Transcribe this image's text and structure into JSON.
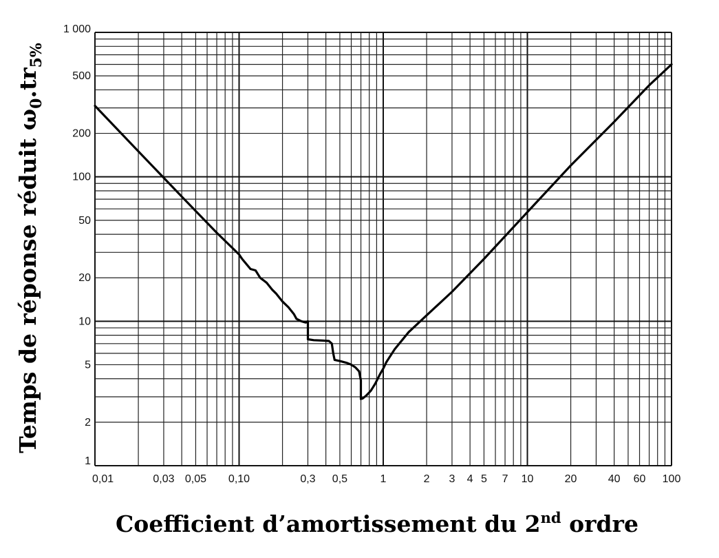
{
  "chart_data": {
    "type": "line",
    "xlabel": "Coefficient d’amortissement du 2",
    "xlabel_sup": "nd",
    "xlabel_tail": " ordre",
    "ylabel": "Temps de réponse réduit ",
    "ylabel_omega": "ω",
    "ylabel_omega_sub": "0",
    "ylabel_mid": ".tr",
    "ylabel_sub": "5%",
    "x_scale": "log",
    "y_scale": "log",
    "xlim": [
      0.01,
      100
    ],
    "ylim": [
      1,
      1000
    ],
    "grid": true,
    "x_ticks": [
      {
        "value": 0.01,
        "label": "0,01"
      },
      {
        "value": 0.03,
        "label": "0,03"
      },
      {
        "value": 0.05,
        "label": "0,05"
      },
      {
        "value": 0.1,
        "label": "0,10"
      },
      {
        "value": 0.3,
        "label": "0,3"
      },
      {
        "value": 0.5,
        "label": "0,5"
      },
      {
        "value": 1,
        "label": "1"
      },
      {
        "value": 2,
        "label": "2"
      },
      {
        "value": 3,
        "label": "3"
      },
      {
        "value": 4,
        "label": "4"
      },
      {
        "value": 5,
        "label": "5"
      },
      {
        "value": 7,
        "label": "7"
      },
      {
        "value": 10,
        "label": "10"
      },
      {
        "value": 20,
        "label": "20"
      },
      {
        "value": 40,
        "label": "40"
      },
      {
        "value": 60,
        "label": "60"
      },
      {
        "value": 100,
        "label": "100"
      }
    ],
    "y_ticks": [
      {
        "value": 1,
        "label": "1"
      },
      {
        "value": 2,
        "label": "2"
      },
      {
        "value": 5,
        "label": "5"
      },
      {
        "value": 10,
        "label": "10"
      },
      {
        "value": 20,
        "label": "20"
      },
      {
        "value": 50,
        "label": "50"
      },
      {
        "value": 100,
        "label": "100"
      },
      {
        "value": 200,
        "label": "200"
      },
      {
        "value": 500,
        "label": "500"
      },
      {
        "value": 1000,
        "label": "1 000"
      }
    ],
    "series": [
      {
        "x": [
          0.01,
          0.02,
          0.04,
          0.07,
          0.1,
          0.105,
          0.12,
          0.13,
          0.14,
          0.155,
          0.17,
          0.18,
          0.2,
          0.22,
          0.24,
          0.25,
          0.27,
          0.29,
          0.3,
          0.3,
          0.33,
          0.38,
          0.42,
          0.44,
          0.45,
          0.46,
          0.5,
          0.56,
          0.6,
          0.64,
          0.68,
          0.7,
          0.7,
          0.72,
          0.76,
          0.82,
          0.88,
          0.95,
          1.0,
          1.05,
          1.2,
          1.5,
          2,
          3,
          5,
          10,
          20,
          40,
          70,
          100
        ],
        "y": [
          310,
          150,
          73,
          41,
          29,
          27,
          23,
          22.5,
          20,
          18.5,
          16.5,
          15.6,
          13.7,
          12.5,
          11.2,
          10.4,
          10.0,
          9.8,
          10.0,
          7.5,
          7.4,
          7.35,
          7.3,
          7.0,
          6.0,
          5.4,
          5.3,
          5.15,
          5.0,
          4.8,
          4.5,
          3.9,
          2.9,
          2.92,
          3.05,
          3.3,
          3.7,
          4.3,
          4.7,
          5.2,
          6.4,
          8.4,
          11.0,
          16,
          27,
          57,
          120,
          240,
          430,
          600
        ]
      }
    ]
  }
}
